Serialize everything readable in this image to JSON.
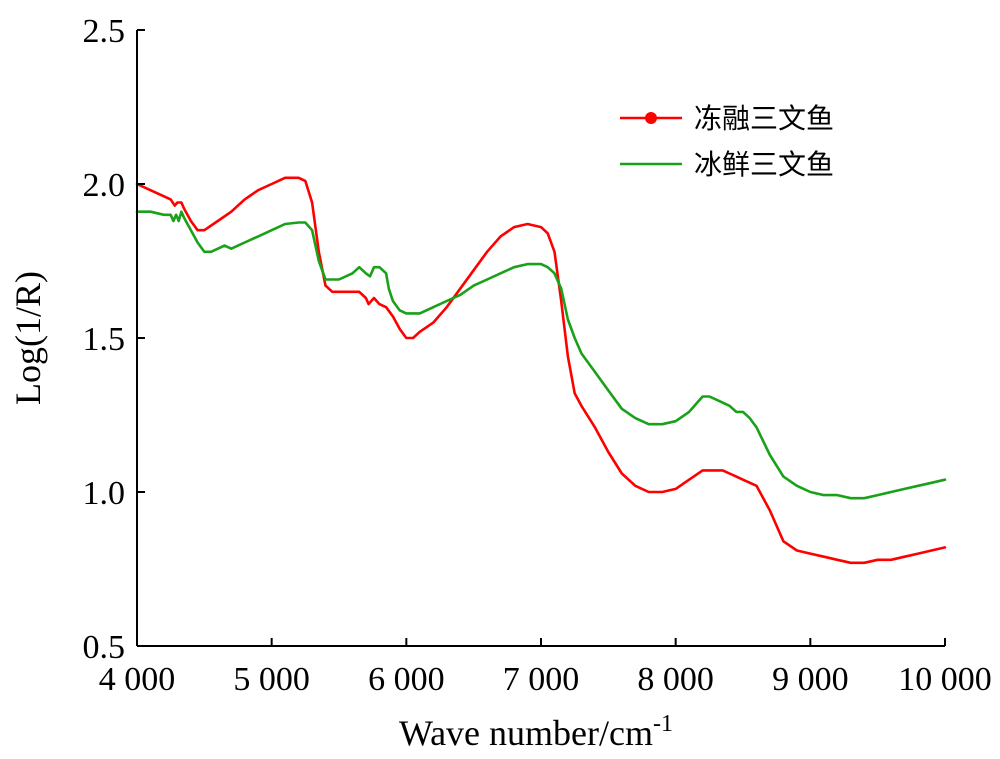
{
  "chart_data": {
    "type": "line",
    "title": "",
    "xlabel": "Wave number/cm",
    "xlabel_sup": "-1",
    "ylabel": "Log(1/R)",
    "xlim": [
      4000,
      10000
    ],
    "ylim": [
      0.5,
      2.5
    ],
    "x_ticks": [
      4000,
      5000,
      6000,
      7000,
      8000,
      9000,
      10000
    ],
    "x_tick_labels": [
      "4 000",
      "5 000",
      "6 000",
      "7 000",
      "8 000",
      "9 000",
      "10 000"
    ],
    "y_ticks": [
      0.5,
      1.0,
      1.5,
      2.0,
      2.5
    ],
    "y_tick_labels": [
      "0.5",
      "1.0",
      "1.5",
      "2.0",
      "2.5"
    ],
    "grid": false,
    "legend_position": "top-right",
    "series": [
      {
        "name": "冻融三文鱼",
        "color": "#ff0000",
        "marker": "circle",
        "x": [
          4000,
          4100,
          4200,
          4250,
          4280,
          4300,
          4330,
          4350,
          4400,
          4450,
          4500,
          4600,
          4700,
          4800,
          4900,
          5000,
          5100,
          5150,
          5200,
          5250,
          5300,
          5350,
          5400,
          5450,
          5500,
          5600,
          5650,
          5700,
          5720,
          5740,
          5760,
          5800,
          5850,
          5900,
          5950,
          6000,
          6050,
          6100,
          6200,
          6300,
          6400,
          6500,
          6600,
          6700,
          6800,
          6900,
          7000,
          7050,
          7100,
          7150,
          7200,
          7250,
          7300,
          7400,
          7500,
          7600,
          7700,
          7800,
          7900,
          8000,
          8100,
          8200,
          8250,
          8300,
          8350,
          8400,
          8450,
          8500,
          8600,
          8700,
          8800,
          8900,
          9000,
          9100,
          9200,
          9300,
          9400,
          9500,
          9600,
          9700,
          9800,
          9900,
          10000
        ],
        "y": [
          2.0,
          1.98,
          1.96,
          1.95,
          1.93,
          1.94,
          1.94,
          1.92,
          1.88,
          1.85,
          1.85,
          1.88,
          1.91,
          1.95,
          1.98,
          2.0,
          2.02,
          2.02,
          2.02,
          2.01,
          1.94,
          1.78,
          1.67,
          1.65,
          1.65,
          1.65,
          1.65,
          1.63,
          1.61,
          1.62,
          1.63,
          1.61,
          1.6,
          1.57,
          1.53,
          1.5,
          1.5,
          1.52,
          1.55,
          1.6,
          1.66,
          1.72,
          1.78,
          1.83,
          1.86,
          1.87,
          1.86,
          1.84,
          1.78,
          1.62,
          1.44,
          1.32,
          1.28,
          1.21,
          1.13,
          1.06,
          1.02,
          1.0,
          1.0,
          1.01,
          1.04,
          1.07,
          1.07,
          1.07,
          1.07,
          1.06,
          1.05,
          1.04,
          1.02,
          0.94,
          0.84,
          0.81,
          0.8,
          0.79,
          0.78,
          0.77,
          0.77,
          0.78,
          0.78,
          0.79,
          0.8,
          0.81,
          0.82
        ]
      },
      {
        "name": "冰鲜三文鱼",
        "color": "#1aa11a",
        "marker": "none",
        "x": [
          4000,
          4100,
          4200,
          4250,
          4270,
          4290,
          4310,
          4330,
          4350,
          4400,
          4450,
          4500,
          4550,
          4600,
          4650,
          4700,
          4750,
          4800,
          4900,
          5000,
          5100,
          5200,
          5250,
          5300,
          5350,
          5400,
          5450,
          5500,
          5600,
          5650,
          5700,
          5730,
          5760,
          5800,
          5850,
          5870,
          5900,
          5950,
          6000,
          6050,
          6100,
          6200,
          6300,
          6400,
          6500,
          6600,
          6700,
          6800,
          6900,
          7000,
          7050,
          7100,
          7150,
          7200,
          7250,
          7300,
          7400,
          7500,
          7600,
          7700,
          7800,
          7900,
          8000,
          8100,
          8200,
          8250,
          8300,
          8400,
          8450,
          8500,
          8550,
          8600,
          8700,
          8800,
          8900,
          9000,
          9100,
          9200,
          9300,
          9400,
          9500,
          9600,
          9700,
          9800,
          9900,
          10000
        ],
        "y": [
          1.91,
          1.91,
          1.9,
          1.9,
          1.88,
          1.9,
          1.88,
          1.91,
          1.89,
          1.85,
          1.81,
          1.78,
          1.78,
          1.79,
          1.8,
          1.79,
          1.8,
          1.81,
          1.83,
          1.85,
          1.87,
          1.875,
          1.875,
          1.85,
          1.75,
          1.69,
          1.69,
          1.69,
          1.71,
          1.73,
          1.71,
          1.7,
          1.73,
          1.73,
          1.71,
          1.66,
          1.62,
          1.59,
          1.58,
          1.58,
          1.58,
          1.6,
          1.62,
          1.64,
          1.67,
          1.69,
          1.71,
          1.73,
          1.74,
          1.74,
          1.73,
          1.71,
          1.66,
          1.56,
          1.5,
          1.45,
          1.39,
          1.33,
          1.27,
          1.24,
          1.22,
          1.22,
          1.23,
          1.26,
          1.31,
          1.31,
          1.3,
          1.28,
          1.26,
          1.26,
          1.24,
          1.21,
          1.12,
          1.05,
          1.02,
          1.0,
          0.99,
          0.99,
          0.98,
          0.98,
          0.99,
          1.0,
          1.01,
          1.02,
          1.03,
          1.04
        ]
      }
    ]
  }
}
